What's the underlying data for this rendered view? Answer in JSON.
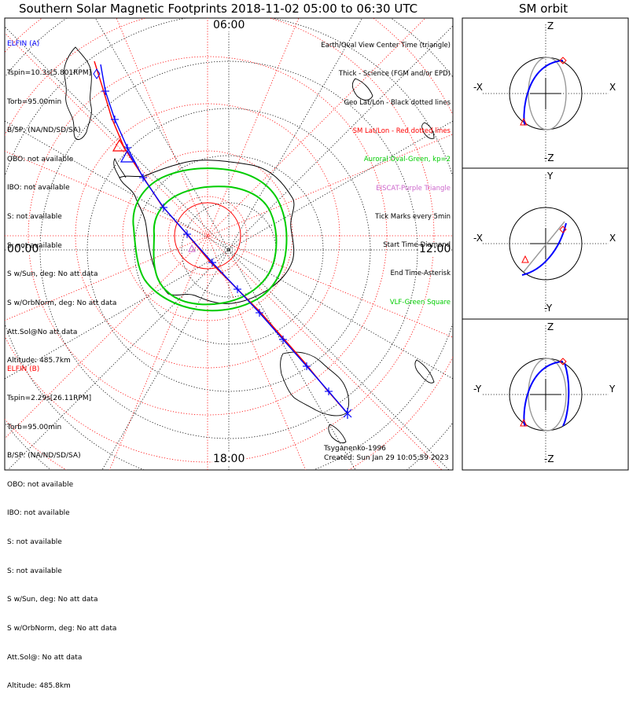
{
  "title": "Southern Solar Magnetic Footprints 2018-11-02 05:00 to 06:30 UTC",
  "orbit_title": "SM orbit",
  "colors": {
    "blue": "#0000ff",
    "red": "#ff0000",
    "green": "#00cc00",
    "purple": "#cc66cc",
    "black": "#000000",
    "gray": "#999999"
  },
  "mlt_labels": {
    "top": "06:00",
    "left": "00:00",
    "right": "12:00",
    "bottom": "18:00"
  },
  "sat_a": {
    "name": "ELFIN (A)",
    "lines": [
      "Tspin=10.3s[5.801RPM]",
      "Torb=95.00min",
      "B/SP: (NA/ND/SD/SA)",
      "OBO: not available",
      "IBO: not available",
      "S: not available",
      "S: not available",
      "S w/Sun, deg: No att data",
      "S w/OrbNorm, deg: No att data",
      "Att.Sol@No att data",
      "Altitude: 485.7km"
    ]
  },
  "sat_b": {
    "name": "ELFIN (B)",
    "lines": [
      "Tspin=2.29s[26.11RPM]",
      "Torb=95.00min",
      "B/SP: (NA/ND/SD/SA)",
      "OBO: not available",
      "IBO: not available",
      "S: not available",
      "S: not available",
      "S w/Sun, deg: No att data",
      "S w/OrbNorm, deg: No att data",
      "Att.Sol@: No att data",
      "Altitude: 485.8km"
    ]
  },
  "legend": [
    {
      "text": "Earth/Oval View Center Time (triangle)",
      "color": "#000000"
    },
    {
      "text": "Thick - Science (FGM and/or EPD)",
      "color": "#000000"
    },
    {
      "text": "Geo Lat/Lon - Black dotted lines",
      "color": "#000000"
    },
    {
      "text": "SM Lat/Lon - Red dotted lines",
      "color": "#ff0000"
    },
    {
      "text": "Auroral Oval-Green, kp=2",
      "color": "#00cc00"
    },
    {
      "text": "EISCAT-Purple Triangle",
      "color": "#cc66cc"
    },
    {
      "text": "Tick Marks every 5min",
      "color": "#000000"
    },
    {
      "text": "Start Time-Diamond",
      "color": "#000000"
    },
    {
      "text": "End Time-Asterisk",
      "color": "#000000"
    },
    {
      "text": "VLF-Green Square",
      "color": "#00cc00"
    }
  ],
  "credit": {
    "author": "Tsyganenko-1996",
    "created": "Created: Sun Jan 29 10:05:59 2023"
  },
  "orbit_panels": [
    {
      "top": "Z",
      "bottom": "-Z",
      "left": "-X",
      "right": "X"
    },
    {
      "top": "Y",
      "bottom": "-Y",
      "left": "-X",
      "right": "X"
    },
    {
      "top": "Z",
      "bottom": "-Z",
      "left": "-Y",
      "right": "Y"
    }
  ],
  "chart_data": {
    "type": "scatter",
    "projection": "south polar, SM coordinates",
    "time_range": [
      "2018-11-02 05:00",
      "2018-11-02 06:30"
    ],
    "tick_interval_min": 5,
    "kp": 2,
    "series": [
      {
        "name": "ELFIN (A)",
        "color": "#0000ff"
      },
      {
        "name": "ELFIN (B)",
        "color": "#ff0000"
      }
    ]
  }
}
